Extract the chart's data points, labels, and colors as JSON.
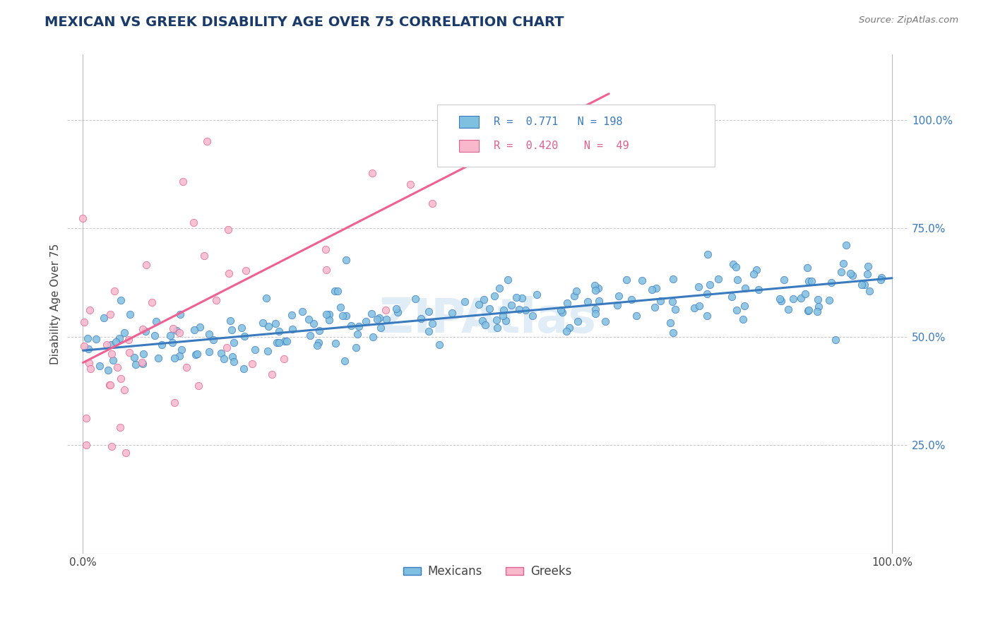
{
  "title": "MEXICAN VS GREEK DISABILITY AGE OVER 75 CORRELATION CHART",
  "source_text": "Source: ZipAtlas.com",
  "ylabel": "Disability Age Over 75",
  "watermark": "ZIPAtlas",
  "mexican_color": "#7fbfdf",
  "mexican_edge_color": "#3a7abf",
  "greek_color": "#f9b8cc",
  "greek_edge_color": "#e06090",
  "trend_mexican_color": "#3a7abf",
  "trend_greek_color": "#f06090",
  "legend_R_mexican": "0.771",
  "legend_N_mexican": "198",
  "legend_R_greek": "0.420",
  "legend_N_greek": "49",
  "background_color": "#ffffff",
  "grid_color": "#bbbbbb",
  "title_color": "#1a3a6a",
  "source_color": "#777777",
  "watermark_color": "#c8dff0",
  "ylim_low": 0.0,
  "ylim_high": 1.15,
  "yticks": [
    0.25,
    0.5,
    0.75,
    1.0
  ],
  "ytick_labels": [
    "25.0%",
    "50.0%",
    "75.0%",
    "100.0%"
  ],
  "xticks": [
    0.0,
    1.0
  ],
  "xtick_labels": [
    "0.0%",
    "100.0%"
  ],
  "mexican_trend_x0": 0.0,
  "mexican_trend_y0": 0.468,
  "mexican_trend_x1": 1.0,
  "mexican_trend_y1": 0.635,
  "greek_trend_x0": 0.0,
  "greek_trend_y0": 0.44,
  "greek_trend_x1": 0.65,
  "greek_trend_y1": 1.06
}
